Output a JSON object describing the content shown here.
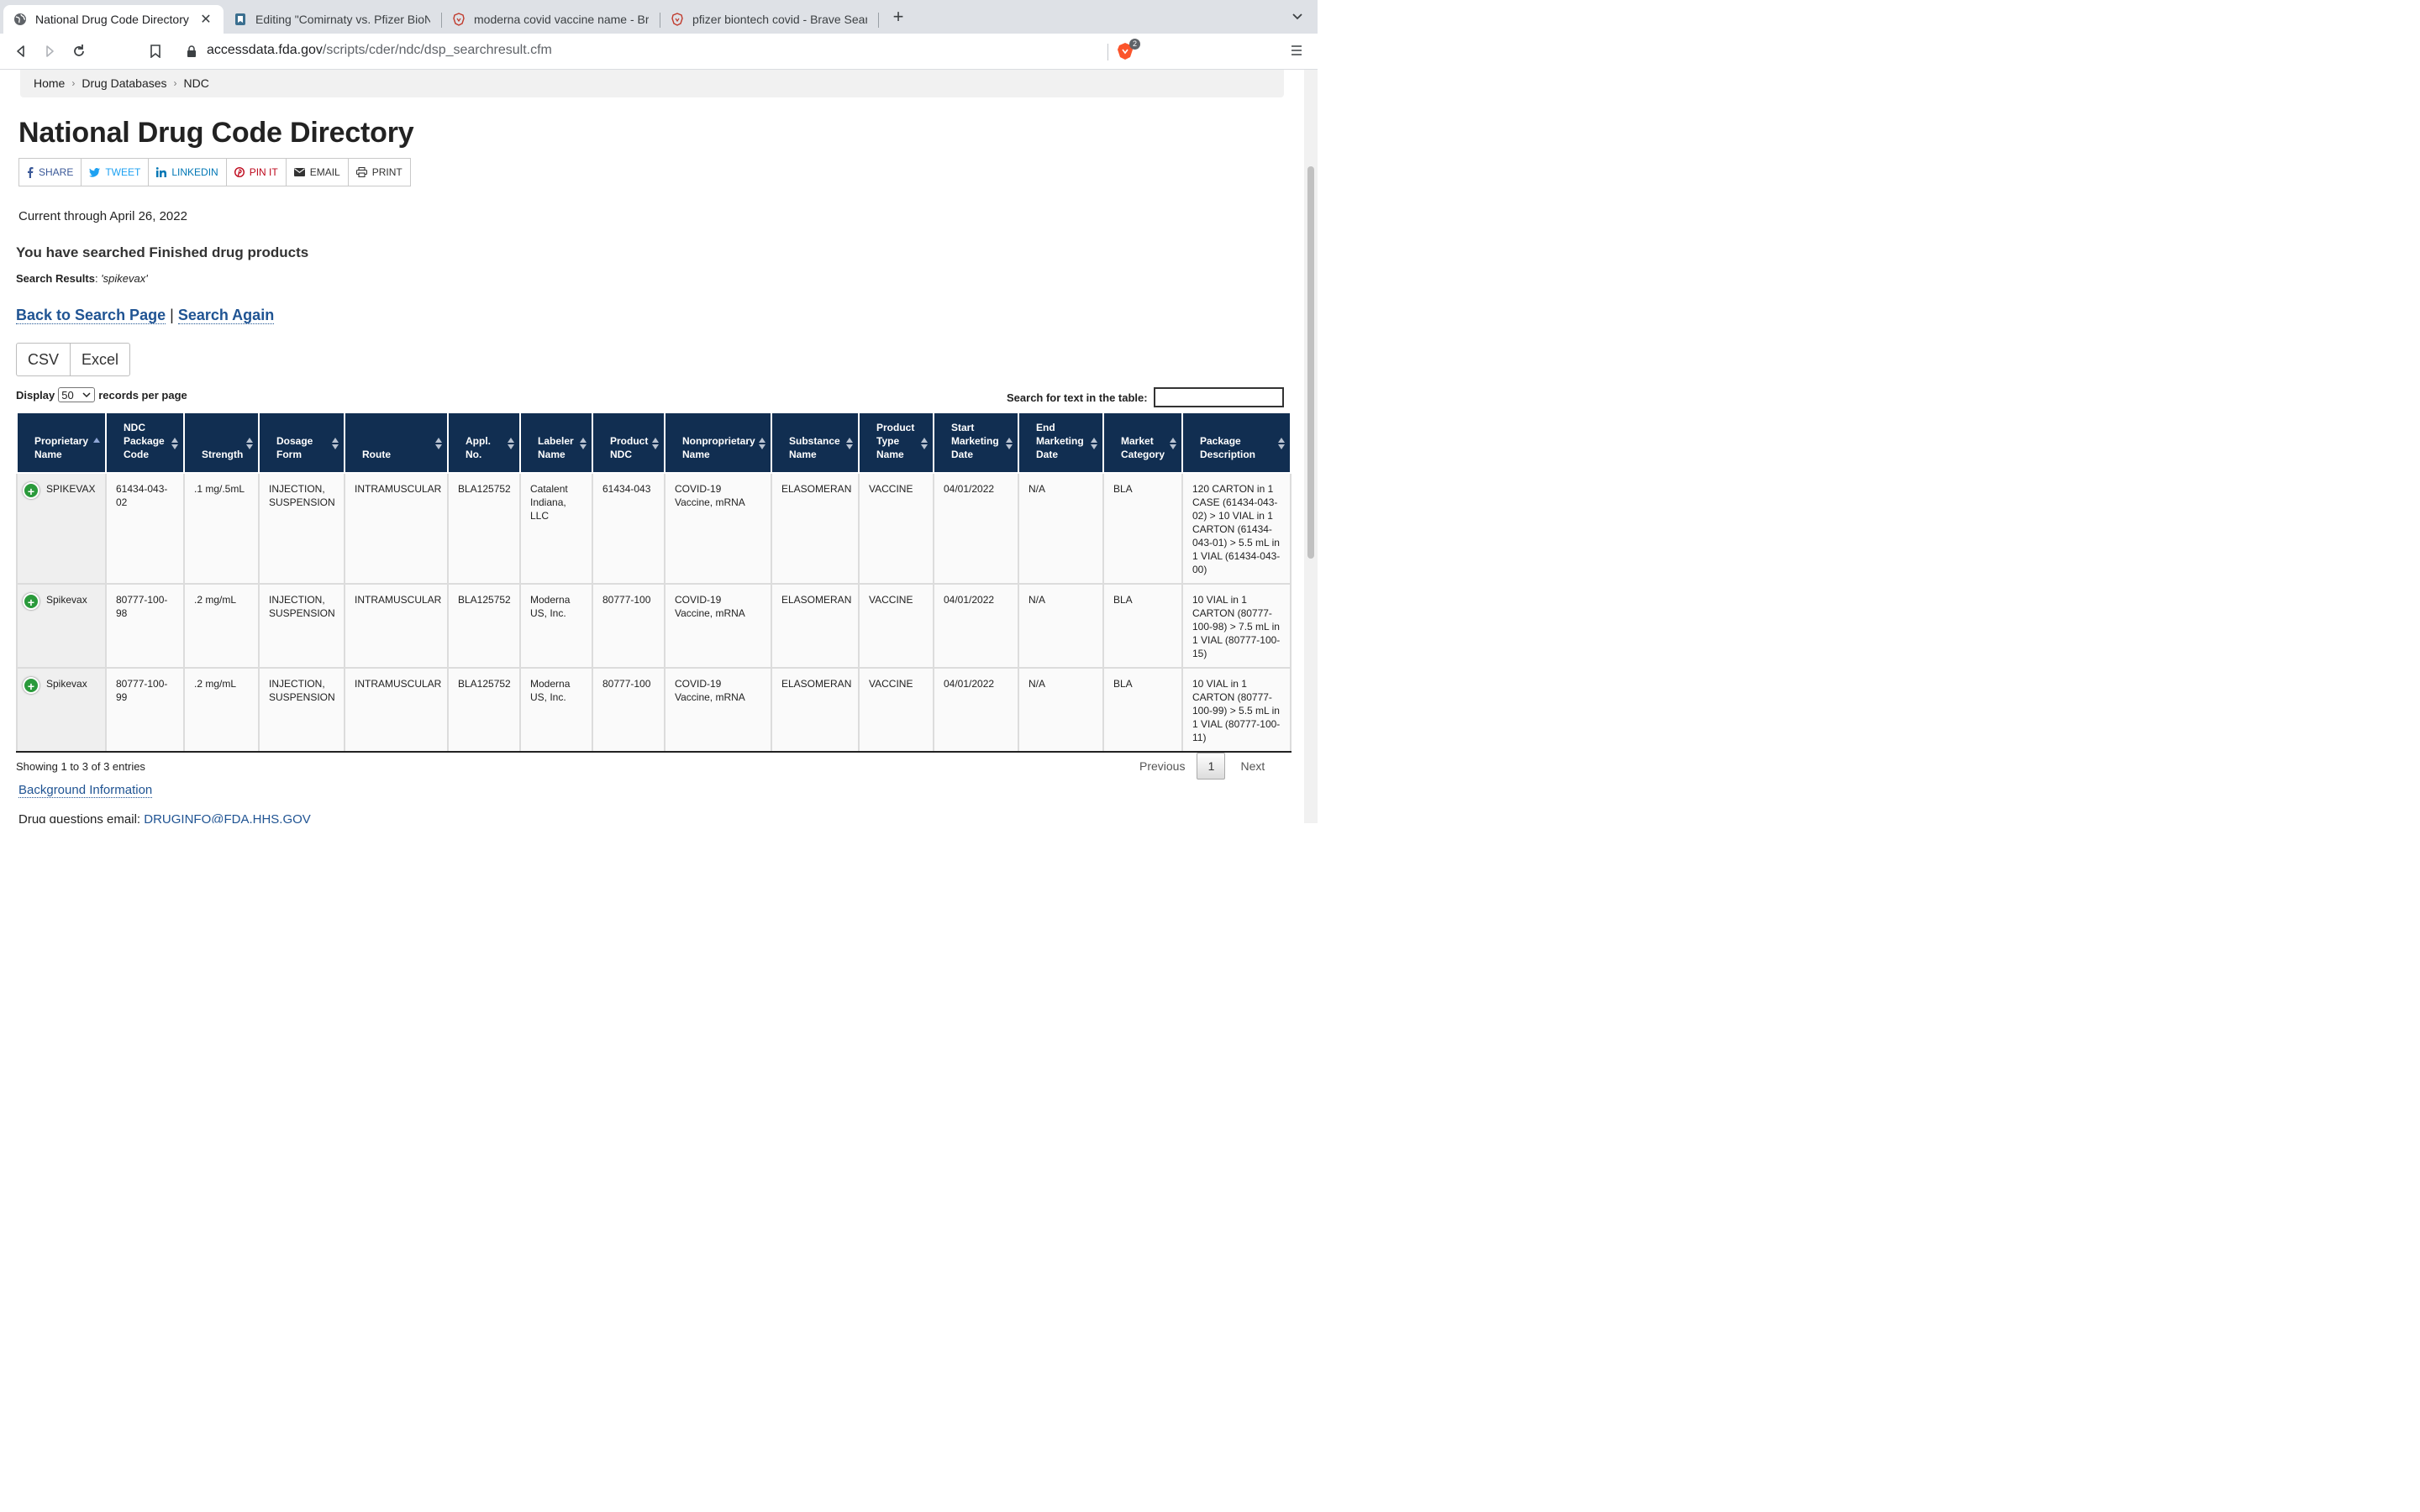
{
  "browser": {
    "tabs": [
      {
        "label": "National Drug Code Directory",
        "icon": "globe-icon",
        "active": true
      },
      {
        "label": "Editing \"Comirnaty vs. Pfizer BioNTech",
        "icon": "editor-icon",
        "active": false
      },
      {
        "label": "moderna covid vaccine name - Brave Search",
        "icon": "brave-icon",
        "active": false
      },
      {
        "label": "pfizer biontech covid - Brave Search",
        "icon": "brave-icon",
        "active": false
      }
    ],
    "url_host": "accessdata.fda.gov",
    "url_path": "/scripts/cder/ndc/dsp_searchresult.cfm",
    "shields_count": "2"
  },
  "breadcrumb": [
    "Home",
    "Drug Databases",
    "NDC"
  ],
  "page_title": "National Drug Code Directory",
  "share": [
    {
      "label": "SHARE",
      "icon": "facebook-icon",
      "color": "#3b5998"
    },
    {
      "label": "TWEET",
      "icon": "twitter-icon",
      "color": "#1da1f2"
    },
    {
      "label": "LINKEDIN",
      "icon": "linkedin-icon",
      "color": "#0077b5"
    },
    {
      "label": "PIN IT",
      "icon": "pinterest-icon",
      "color": "#bd081c"
    },
    {
      "label": "EMAIL",
      "icon": "email-icon",
      "color": "#333333"
    },
    {
      "label": "PRINT",
      "icon": "print-icon",
      "color": "#333333"
    }
  ],
  "current_through": "Current through April 26, 2022",
  "searched_heading": "You have searched Finished drug products",
  "search_results_label": "Search Results",
  "search_query": "'spikevax'",
  "links": {
    "back": "Back to Search Page",
    "separator": "|",
    "again": "Search Again"
  },
  "export": {
    "csv": "CSV",
    "excel": "Excel"
  },
  "display": {
    "before": "Display",
    "value": "50",
    "after": "records per page"
  },
  "table_search_label": "Search for text in the table:",
  "table": {
    "columns": [
      "Proprietary Name",
      "NDC Package Code",
      "Strength",
      "Dosage Form",
      "Route",
      "Appl. No.",
      "Labeler Name",
      "Product NDC",
      "Nonproprietary Name",
      "Substance Name",
      "Product Type Name",
      "Start Marketing Date",
      "End Marketing Date",
      "Market Category",
      "Package Description"
    ],
    "rows": [
      [
        "SPIKEVAX",
        "61434-043-02",
        ".1 mg/.5mL",
        "INJECTION, SUSPENSION",
        "INTRAMUSCULAR",
        "BLA125752",
        "Catalent Indiana, LLC",
        "61434-043",
        "COVID-19 Vaccine, mRNA",
        "ELASOMERAN",
        "VACCINE",
        "04/01/2022",
        "N/A",
        "BLA",
        "120 CARTON in 1 CASE (61434-043-02) > 10 VIAL in 1 CARTON (61434-043-01) > 5.5 mL in 1 VIAL (61434-043-00)"
      ],
      [
        "Spikevax",
        "80777-100-98",
        ".2 mg/mL",
        "INJECTION, SUSPENSION",
        "INTRAMUSCULAR",
        "BLA125752",
        "Moderna US, Inc.",
        "80777-100",
        "COVID-19 Vaccine, mRNA",
        "ELASOMERAN",
        "VACCINE",
        "04/01/2022",
        "N/A",
        "BLA",
        "10 VIAL in 1 CARTON (80777-100-98) > 7.5 mL in 1 VIAL (80777-100-15)"
      ],
      [
        "Spikevax",
        "80777-100-99",
        ".2 mg/mL",
        "INJECTION, SUSPENSION",
        "INTRAMUSCULAR",
        "BLA125752",
        "Moderna US, Inc.",
        "80777-100",
        "COVID-19 Vaccine, mRNA",
        "ELASOMERAN",
        "VACCINE",
        "04/01/2022",
        "N/A",
        "BLA",
        "10 VIAL in 1 CARTON (80777-100-99) > 5.5 mL in 1 VIAL (80777-100-11)"
      ]
    ]
  },
  "showing": "Showing 1 to 3 of 3 entries",
  "pager": {
    "previous": "Previous",
    "current": "1",
    "next": "Next"
  },
  "background_link": "Background Information",
  "email_label": "Drug questions email:",
  "email_address": "DRUGINFO@FDA.HHS.GOV",
  "colors": {
    "header_navy": "#112e51",
    "link_blue": "#205493",
    "expand_green": "#2a9a3b"
  }
}
